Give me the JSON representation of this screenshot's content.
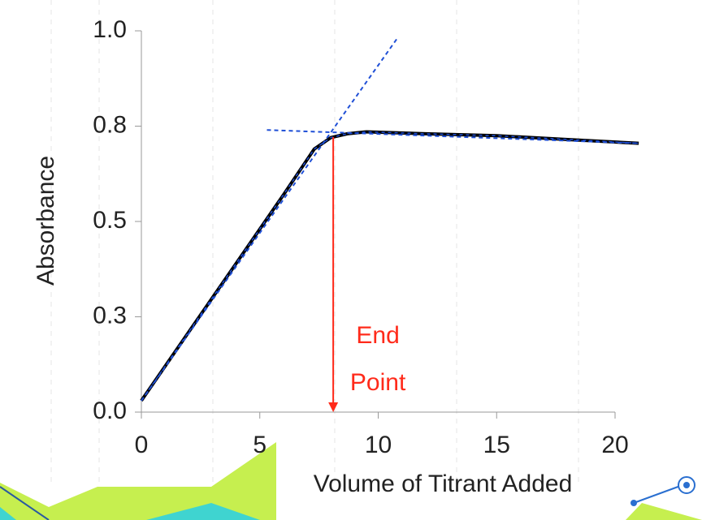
{
  "chart_data": {
    "type": "line",
    "ylabel": "Absorbance",
    "xlabel": "Volume of Titrant Added",
    "x": [
      0,
      2,
      4,
      6,
      7.3,
      8,
      8.7,
      9.5,
      12,
      15,
      18,
      21
    ],
    "values": [
      0.03,
      0.21,
      0.39,
      0.57,
      0.69,
      0.72,
      0.73,
      0.735,
      0.73,
      0.725,
      0.715,
      0.705
    ],
    "color": "#000000",
    "tangents": [
      {
        "x": [
          0,
          10.8
        ],
        "values": [
          0.03,
          0.98
        ]
      },
      {
        "x": [
          5.3,
          21
        ],
        "values": [
          0.74,
          0.705
        ]
      }
    ],
    "tangent_color": "#1f4fd6",
    "xlim": [
      0,
      20
    ],
    "xticks": [
      0,
      5,
      10,
      15,
      20
    ],
    "ylim": [
      0,
      1
    ],
    "yticks": [
      {
        "value": 0,
        "label": "0.0"
      },
      {
        "value": 0.25,
        "label": "0.3"
      },
      0.5,
      {
        "value": 0.75,
        "label": "0.8"
      },
      {
        "value": 1,
        "label": "1.0"
      }
    ],
    "annotation": {
      "lines": [
        "End",
        "Point"
      ],
      "x": 8.1,
      "color": "#ff2a1a"
    }
  }
}
